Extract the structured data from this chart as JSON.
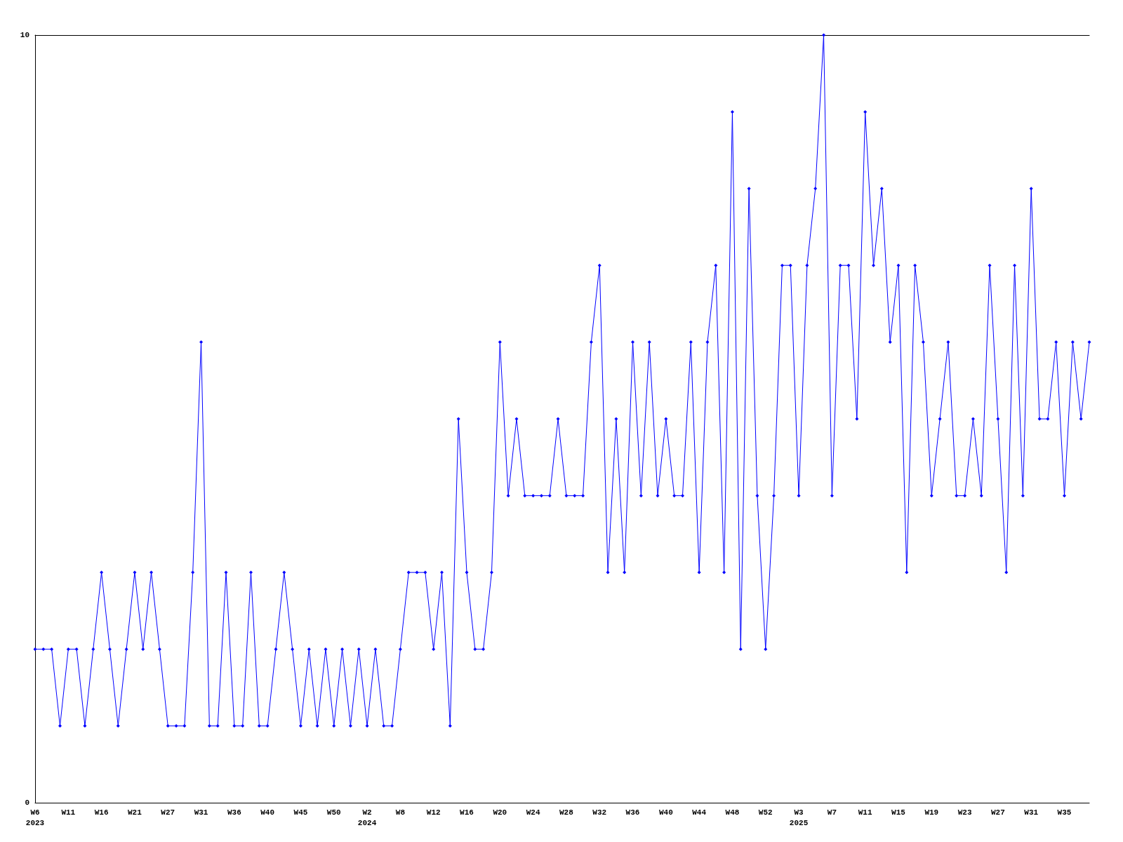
{
  "chart_data": {
    "type": "line",
    "categories": [
      "W6\n2023",
      null,
      null,
      null,
      "W11",
      null,
      null,
      null,
      "W16",
      null,
      null,
      null,
      "W21",
      null,
      null,
      null,
      "W27",
      null,
      null,
      null,
      "W31",
      null,
      null,
      null,
      "W36",
      null,
      null,
      null,
      "W40",
      null,
      null,
      null,
      "W45",
      null,
      null,
      null,
      "W50",
      null,
      null,
      null,
      "W2\n2024",
      null,
      null,
      null,
      "W8",
      null,
      null,
      null,
      "W12",
      null,
      null,
      null,
      "W16",
      null,
      null,
      null,
      "W20",
      null,
      null,
      null,
      "W24",
      null,
      null,
      null,
      "W28",
      null,
      null,
      null,
      "W32",
      null,
      null,
      null,
      "W36",
      null,
      null,
      null,
      "W40",
      null,
      null,
      null,
      "W44",
      null,
      null,
      null,
      "W48",
      null,
      null,
      null,
      "W52",
      null,
      null,
      null,
      "W3\n2025",
      null,
      null,
      null,
      "W7",
      null,
      null,
      null,
      "W11",
      null,
      null,
      null,
      "W15",
      null,
      null,
      null,
      "W19",
      null,
      null,
      null,
      "W23",
      null,
      null,
      null,
      "W27",
      null,
      null,
      null,
      "W31",
      null,
      null,
      null,
      "W35",
      null,
      null,
      null
    ],
    "series": [
      {
        "color": "#0000ff",
        "values": [
          2,
          2,
          2,
          1,
          2,
          2,
          1,
          2,
          3,
          2,
          1,
          2,
          3,
          2,
          3,
          2,
          1,
          1,
          1,
          3,
          6,
          1,
          1,
          3,
          1,
          1,
          3,
          1,
          1,
          2,
          3,
          2,
          1,
          2,
          1,
          2,
          1,
          2,
          1,
          2,
          1,
          2,
          1,
          1,
          2,
          3,
          3,
          3,
          2,
          3,
          1,
          5,
          3,
          2,
          2,
          3,
          6,
          4,
          5,
          4,
          4,
          4,
          4,
          5,
          4,
          4,
          4,
          6,
          7,
          3,
          5,
          3,
          6,
          4,
          6,
          4,
          5,
          4,
          4,
          6,
          3,
          6,
          7,
          3,
          9,
          2,
          8,
          4,
          2,
          4,
          7,
          7,
          4,
          7,
          8,
          10,
          4,
          7,
          7,
          5,
          9,
          7,
          8,
          6,
          7,
          3,
          7,
          6,
          4,
          5,
          6,
          4,
          4,
          5,
          4,
          7,
          5,
          3,
          7,
          4,
          8,
          5,
          5,
          6,
          4,
          6,
          5,
          6
        ]
      }
    ],
    "ylim": [
      0,
      10
    ],
    "yticks": [
      0,
      10
    ],
    "grid": false,
    "marker": "diamond",
    "line_style": "solid"
  }
}
